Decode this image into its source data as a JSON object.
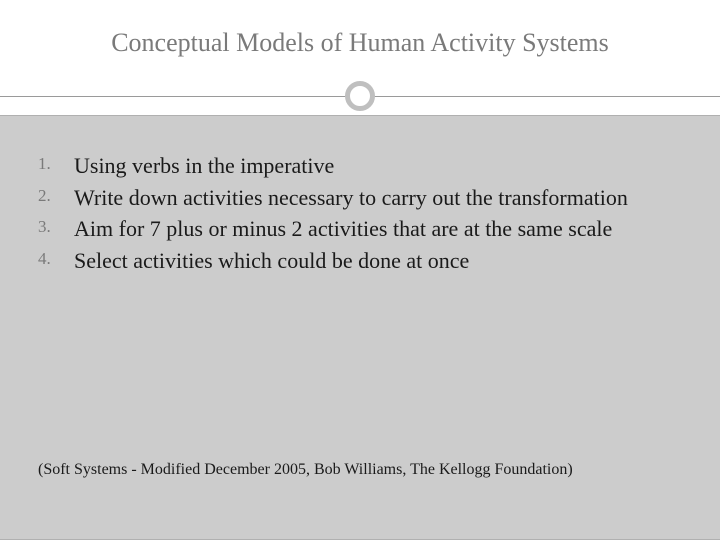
{
  "slide": {
    "title": "Conceptual Models of Human Activity Systems",
    "items": [
      {
        "text": "Using verbs in the imperative"
      },
      {
        "text": "Write down activities necessary to carry out the transformation"
      },
      {
        "text": "Aim for 7 plus or minus 2 activities that are at the same scale"
      },
      {
        "text": "Select activities which could be done at once"
      }
    ],
    "citation": "(Soft Systems - Modified December 2005, Bob Williams, The Kellogg Foundation)"
  },
  "style": {
    "background_body": "#cccccc",
    "background_header": "#ffffff",
    "title_color": "#7a7a7a",
    "title_fontsize": 26,
    "item_fontsize": 22,
    "item_color": "#1a1a1a",
    "number_color": "#7a7a7a",
    "number_fontsize": 17,
    "circle_border_color": "#bfbfbf",
    "circle_border_width": 5,
    "line_color": "#9a9a9a",
    "citation_fontsize": 16,
    "font_family": "Georgia, serif"
  }
}
